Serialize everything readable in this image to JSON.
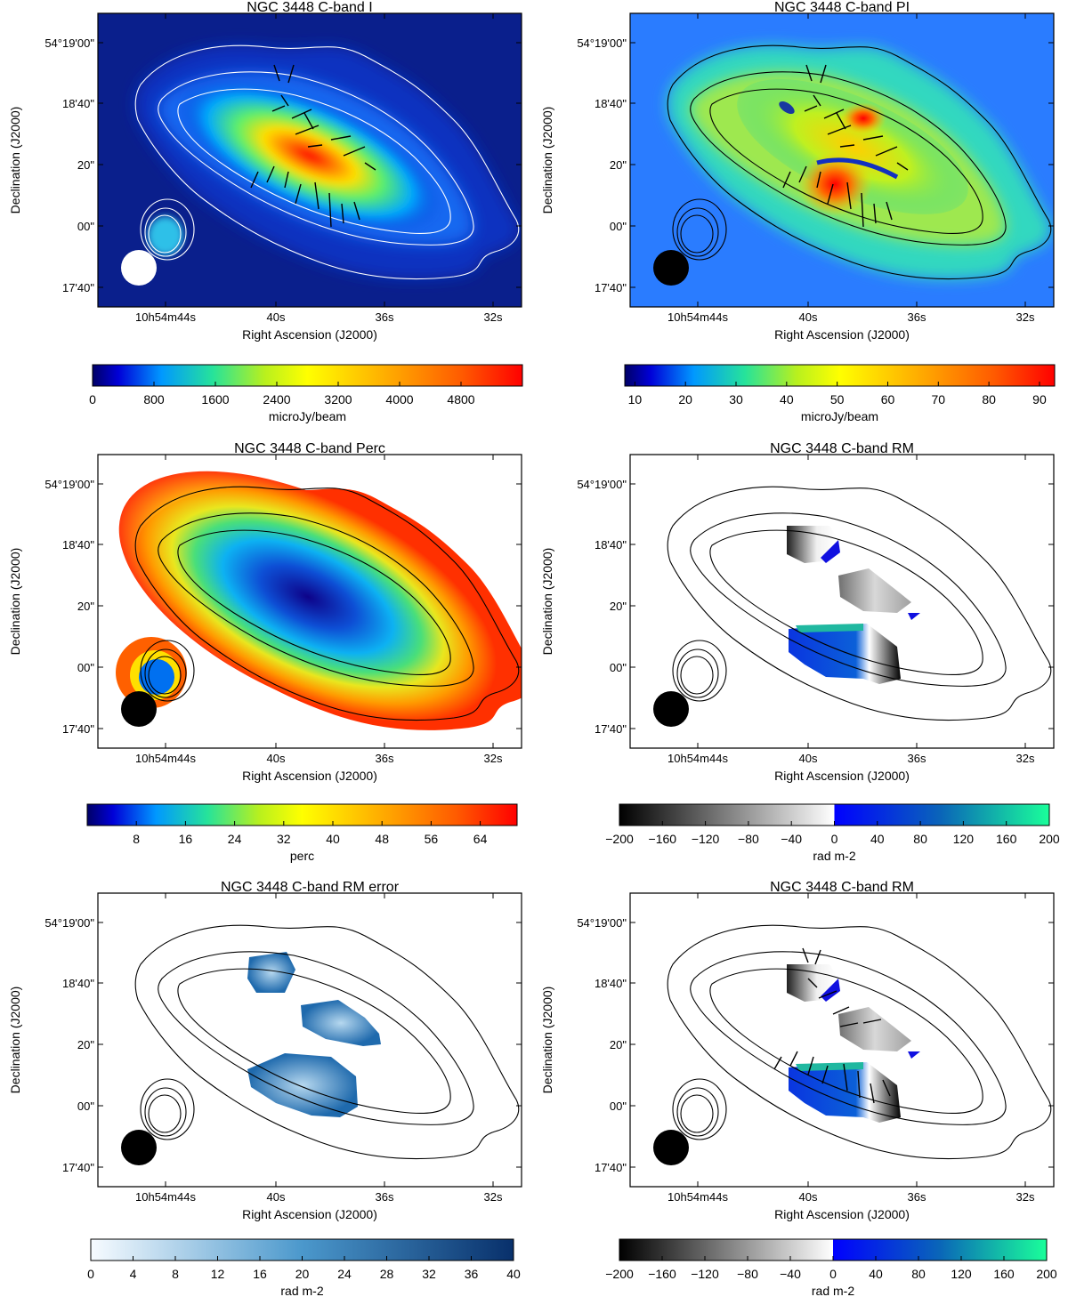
{
  "figure": {
    "panels": [
      {
        "title": "NGC 3448   C-band   I",
        "map": "intensity",
        "contour_color": "#ffffff",
        "beam_color": "#ffffff",
        "vectors": true
      },
      {
        "title": "NGC 3448   C-band   PI",
        "map": "polarized",
        "contour_color": "#000000",
        "beam_color": "#000000",
        "vectors": true
      },
      {
        "title": "NGC 3448   C-band   Perc",
        "map": "percent",
        "contour_color": "#000000",
        "beam_color": "#000000",
        "vectors": false
      },
      {
        "title": "NGC 3448   C-band   RM",
        "map": "rm",
        "contour_color": "#000000",
        "beam_color": "#000000",
        "vectors": false
      },
      {
        "title": "NGC 3448   C-band   RM error",
        "map": "rmerr",
        "contour_color": "#000000",
        "beam_color": "#000000",
        "vectors": false
      },
      {
        "title": "NGC 3448   C-band   RM",
        "map": "rm",
        "contour_color": "#000000",
        "beam_color": "#000000",
        "vectors": true
      }
    ],
    "axes": {
      "xlabel": "Right Ascension (J2000)",
      "ylabel": "Declination (J2000)",
      "xticks": [
        "10h54m44s",
        "40s",
        "36s",
        "32s"
      ],
      "yticks": [
        "54°19'00\"",
        "18'40\"",
        "20\"",
        "00\"",
        "17'40\""
      ]
    },
    "colorbars": [
      {
        "label": "microJy/beam",
        "ticks": [
          "0",
          "800",
          "1600",
          "2400",
          "3200",
          "4000",
          "4800"
        ],
        "min": 0,
        "max": 5600,
        "tick_values": [
          0,
          800,
          1600,
          2400,
          3200,
          4000,
          4800
        ],
        "scale": "rainbow"
      },
      {
        "label": "microJy/beam",
        "ticks": [
          "10",
          "20",
          "30",
          "40",
          "50",
          "60",
          "70",
          "80",
          "90"
        ],
        "min": 8,
        "max": 93,
        "tick_values": [
          10,
          20,
          30,
          40,
          50,
          60,
          70,
          80,
          90
        ],
        "scale": "rainbow"
      },
      {
        "label": "perc",
        "ticks": [
          "8",
          "16",
          "24",
          "32",
          "40",
          "48",
          "56",
          "64"
        ],
        "min": 0,
        "max": 70,
        "tick_values": [
          8,
          16,
          24,
          32,
          40,
          48,
          56,
          64
        ],
        "scale": "rainbow"
      },
      {
        "label": "rad m-2",
        "ticks": [
          "−200",
          "−160",
          "−120",
          "−80",
          "−40",
          "0",
          "40",
          "80",
          "120",
          "160",
          "200"
        ],
        "min": -200,
        "max": 200,
        "tick_values": [
          -200,
          -160,
          -120,
          -80,
          -40,
          0,
          40,
          80,
          120,
          160,
          200
        ],
        "scale": "rm"
      },
      {
        "label": "rad m-2",
        "ticks": [
          "0",
          "4",
          "8",
          "12",
          "16",
          "20",
          "24",
          "28",
          "32",
          "36",
          "40"
        ],
        "min": 0,
        "max": 40,
        "tick_values": [
          0,
          4,
          8,
          12,
          16,
          20,
          24,
          28,
          32,
          36,
          40
        ],
        "scale": "blues"
      },
      {
        "label": "rad m-2",
        "ticks": [
          "−200",
          "−160",
          "−120",
          "−80",
          "−40",
          "0",
          "40",
          "80",
          "120",
          "160",
          "200"
        ],
        "min": -200,
        "max": 200,
        "tick_values": [
          -200,
          -160,
          -120,
          -80,
          -40,
          0,
          40,
          80,
          120,
          160,
          200
        ],
        "scale": "rm"
      }
    ]
  },
  "chart_data": [
    {
      "type": "heatmap",
      "title": "NGC 3448   C-band   I",
      "xlabel": "Right Ascension (J2000)",
      "ylabel": "Declination (J2000)",
      "colorbar_label": "microJy/beam",
      "colorbar_range": [
        0,
        5600
      ]
    },
    {
      "type": "heatmap",
      "title": "NGC 3448   C-band   PI",
      "xlabel": "Right Ascension (J2000)",
      "ylabel": "Declination (J2000)",
      "colorbar_label": "microJy/beam",
      "colorbar_range": [
        8,
        93
      ]
    },
    {
      "type": "heatmap",
      "title": "NGC 3448   C-band   Perc",
      "xlabel": "Right Ascension (J2000)",
      "ylabel": "Declination (J2000)",
      "colorbar_label": "perc",
      "colorbar_range": [
        0,
        70
      ]
    },
    {
      "type": "heatmap",
      "title": "NGC 3448   C-band   RM",
      "xlabel": "Right Ascension (J2000)",
      "ylabel": "Declination (J2000)",
      "colorbar_label": "rad m-2",
      "colorbar_range": [
        -200,
        200
      ]
    },
    {
      "type": "heatmap",
      "title": "NGC 3448   C-band   RM error",
      "xlabel": "Right Ascension (J2000)",
      "ylabel": "Declination (J2000)",
      "colorbar_label": "rad m-2",
      "colorbar_range": [
        0,
        40
      ]
    },
    {
      "type": "heatmap",
      "title": "NGC 3448   C-band   RM",
      "xlabel": "Right Ascension (J2000)",
      "ylabel": "Declination (J2000)",
      "colorbar_label": "rad m-2",
      "colorbar_range": [
        -200,
        200
      ]
    }
  ]
}
